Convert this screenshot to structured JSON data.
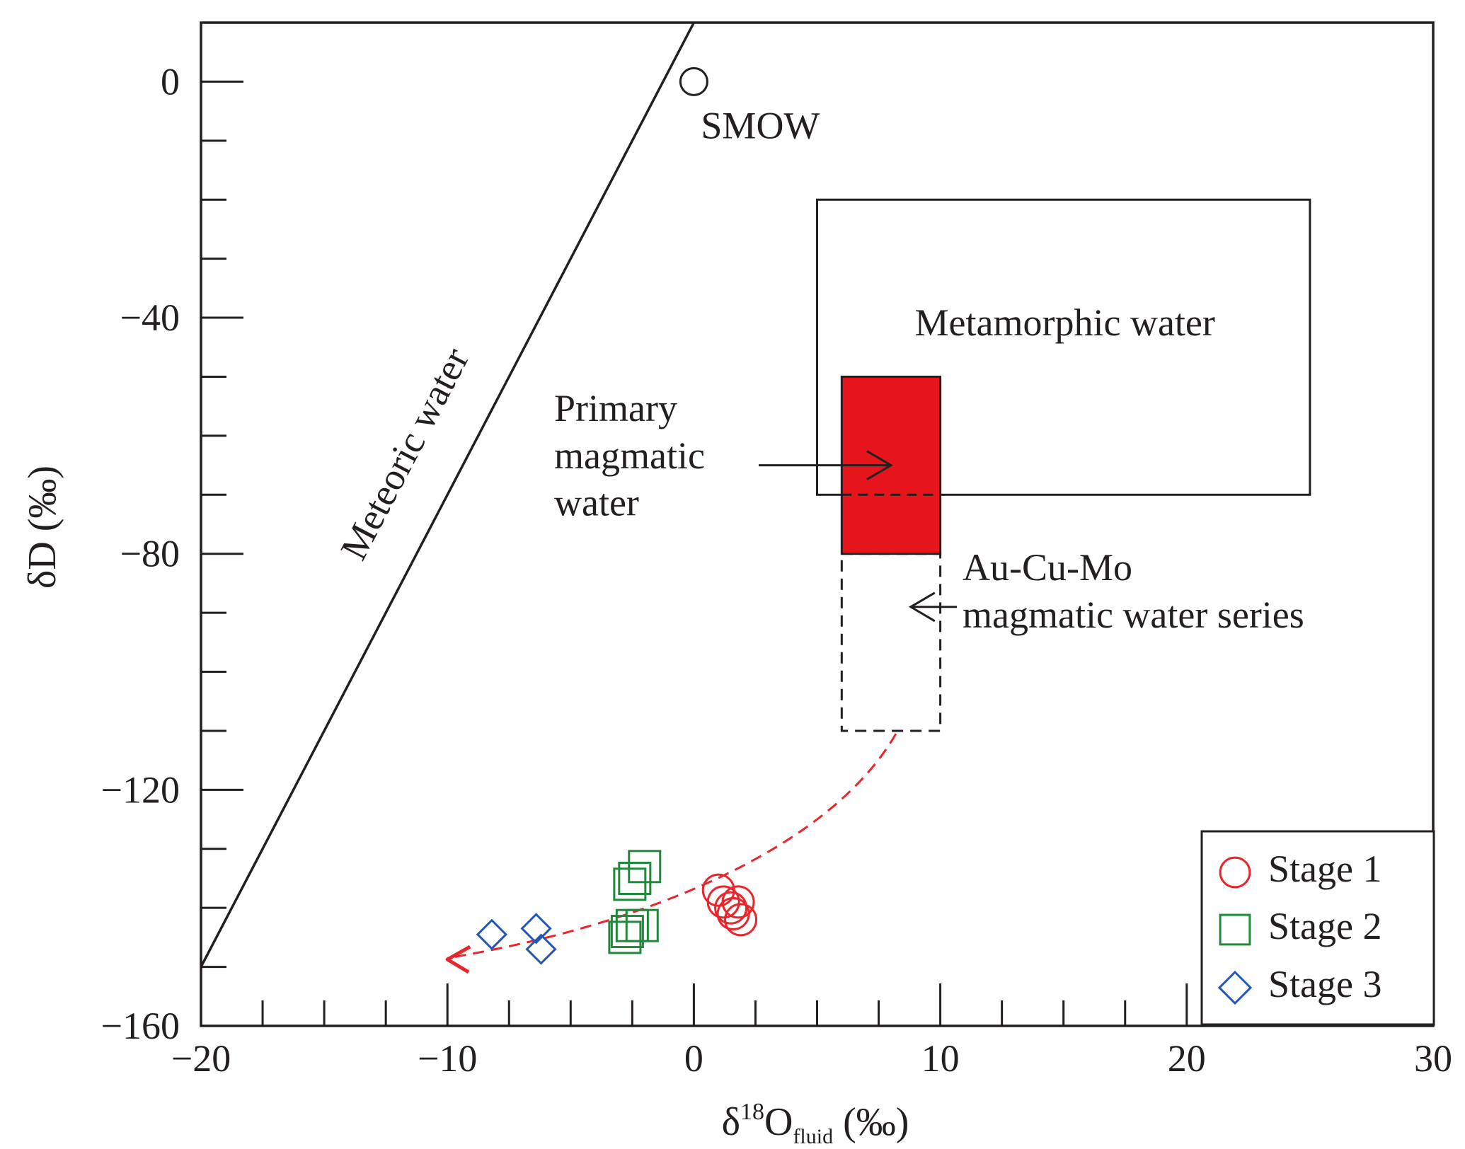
{
  "chart_data": {
    "type": "scatter",
    "xlabel": {
      "prefix": "δ",
      "sup": "18",
      "main": "O",
      "sub": "fluid",
      "suffix": " (‰)"
    },
    "ylabel": "δD (‰)",
    "xlim": [
      -20,
      30
    ],
    "ylim": [
      -160,
      10
    ],
    "x_ticks": [
      -20,
      -10,
      0,
      10,
      20,
      30
    ],
    "x_tick_labels": [
      "−20",
      "−10",
      "0",
      "10",
      "20",
      "30"
    ],
    "x_minor_step": 2.5,
    "y_ticks": [
      0,
      -40,
      -80,
      -120,
      -160
    ],
    "y_tick_labels": [
      "0",
      "−40",
      "−80",
      "−120",
      "−160"
    ],
    "y_minor_step": 10,
    "series": [
      {
        "name": "Stage 1",
        "marker": "circle",
        "color": "#e8262b",
        "points": [
          [
            1.0,
            -137
          ],
          [
            1.2,
            -139
          ],
          [
            1.5,
            -140
          ],
          [
            1.8,
            -139
          ],
          [
            1.6,
            -141
          ],
          [
            1.9,
            -142
          ]
        ]
      },
      {
        "name": "Stage 2",
        "marker": "square",
        "color": "#1f8a3a",
        "points": [
          [
            -2.0,
            -133
          ],
          [
            -2.4,
            -135
          ],
          [
            -2.6,
            -136
          ],
          [
            -2.1,
            -143
          ],
          [
            -2.5,
            -143
          ],
          [
            -2.7,
            -144
          ],
          [
            -2.8,
            -145
          ]
        ]
      },
      {
        "name": "Stage 3",
        "marker": "diamond",
        "color": "#2456b5",
        "points": [
          [
            -8.2,
            -144.5
          ],
          [
            -6.4,
            -143.5
          ],
          [
            -6.2,
            -147
          ]
        ]
      }
    ],
    "fields": {
      "metamorphic_water": {
        "label": "Metamorphic water",
        "x": [
          5,
          25
        ],
        "y": [
          -70,
          -20
        ],
        "color": "#231f20"
      },
      "primary_magmatic_water": {
        "label_lines": [
          "Primary",
          "magmatic",
          "water"
        ],
        "x": [
          6,
          10
        ],
        "y": [
          -80,
          -50
        ],
        "color": "#e6141b"
      },
      "magmatic_series": {
        "label_lines": [
          "Au-Cu-Mo",
          "magmatic water series"
        ],
        "x": [
          6,
          10
        ],
        "y": [
          -110,
          -80
        ]
      }
    },
    "meteoric_water": {
      "label": "Meteoric water",
      "from": [
        -20,
        -150
      ],
      "to": [
        0,
        10
      ]
    },
    "smow": {
      "label": "SMOW",
      "x": 0,
      "y": 0
    },
    "trend_color": "#e8262b",
    "legend_position": "bottom-right"
  }
}
